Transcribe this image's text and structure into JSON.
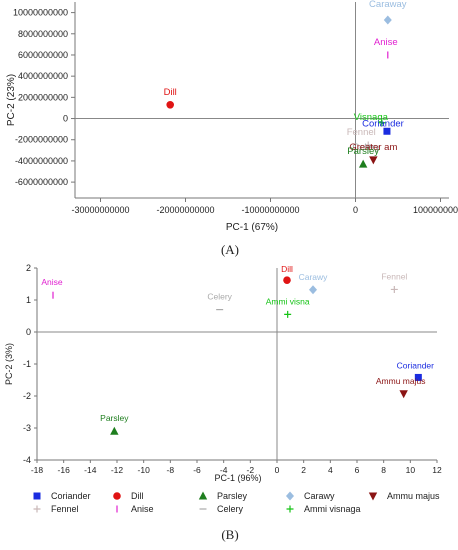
{
  "captions": {
    "a": "(A)",
    "b": "(B)"
  },
  "chart_data": [
    {
      "type": "scatter",
      "title": "",
      "xlabel": "PC-1 (67%)",
      "ylabel": "PC-2 (23%)",
      "xlim": [
        -33000000000,
        11000000000
      ],
      "ylim": [
        -7500000000,
        11000000000
      ],
      "x_ticks": [
        -30000000000,
        -20000000000,
        -10000000000,
        0,
        10000000000
      ],
      "x_tick_labels": [
        "-30000000000",
        "-20000000000",
        "-10000000000",
        "0",
        "10000000000"
      ],
      "y_ticks": [
        10000000000,
        8000000000,
        6000000000,
        4000000000,
        2000000000,
        0,
        -2000000000,
        -4000000000,
        -6000000000
      ],
      "y_tick_labels": [
        "10000000000",
        "8000000000",
        "6000000000",
        "4000000000",
        "2000000000",
        "0",
        "-2000000000",
        "-4000000000",
        "-6000000000"
      ],
      "zero_lines": true,
      "grid": false,
      "legend": "none",
      "points": [
        {
          "label": "Caraway",
          "x": 3800000000,
          "y": 9300000000,
          "marker": "diamond",
          "color": "#9bbde0",
          "label_dx": 0,
          "label_dy": -13
        },
        {
          "label": "Anise",
          "x": 3800000000,
          "y": 6000000000,
          "marker": "vline",
          "color": "#e11fd0",
          "label_dx": -2,
          "label_dy": -10
        },
        {
          "label": "Dill",
          "x": -21800000000,
          "y": 1300000000,
          "marker": "circle",
          "color": "#e01414",
          "label_dx": 0,
          "label_dy": -10
        },
        {
          "label": "Visnaga",
          "x": 3100000000,
          "y": -400000000,
          "marker": "plus",
          "color": "#15c315",
          "label_dx": -11,
          "label_dy": -3
        },
        {
          "label": "Coriander",
          "x": 3700000000,
          "y": -1200000000,
          "marker": "square",
          "color": "#1a2ce0",
          "label_dx": -4,
          "label_dy": -5
        },
        {
          "label": "Fennel",
          "x": 1500000000,
          "y": -2500000000,
          "marker": "plus",
          "color": "#c9b8b8",
          "label_dx": -7,
          "label_dy": -10
        },
        {
          "label": "Celery",
          "x": 1600000000,
          "y": -2700000000,
          "marker": "dash",
          "color": "#aaaaaa",
          "label_dx": -3,
          "label_dy": 3
        },
        {
          "label": "Greater am",
          "x": 2100000000,
          "y": -3900000000,
          "marker": "triangle-down",
          "color": "#8b1414",
          "label_dx": 0,
          "label_dy": -10
        },
        {
          "label": "Parsley",
          "x": 900000000,
          "y": -4300000000,
          "marker": "triangle",
          "color": "#1e7e1e",
          "label_dx": 0,
          "label_dy": -10
        }
      ]
    },
    {
      "type": "scatter",
      "title": "",
      "xlabel": "PC-1 (96%)",
      "ylabel": "PC-2 (3%)",
      "xlim": [
        -18,
        12
      ],
      "ylim": [
        -4,
        2
      ],
      "x_ticks": [
        -18,
        -16,
        -14,
        -12,
        -10,
        -8,
        -6,
        -4,
        -2,
        0,
        2,
        4,
        6,
        8,
        10,
        12
      ],
      "y_ticks": [
        2,
        1,
        0,
        -1,
        -2,
        -3,
        -4
      ],
      "zero_lines": true,
      "grid": false,
      "legend": "bottom",
      "points": [
        {
          "label": "Anise",
          "x": -16.8,
          "y": 1.15,
          "marker": "vline",
          "color": "#e11fd0",
          "label_dx": -1,
          "label_dy": -10
        },
        {
          "label": "Dill",
          "x": 0.75,
          "y": 1.62,
          "marker": "circle",
          "color": "#e01414",
          "label_dx": 0,
          "label_dy": -8
        },
        {
          "label": "Carawy",
          "x": 2.7,
          "y": 1.32,
          "marker": "diamond",
          "color": "#9bbde0",
          "label_dx": 0,
          "label_dy": -10
        },
        {
          "label": "Fennel",
          "x": 8.8,
          "y": 1.33,
          "marker": "plus",
          "color": "#c9b8b8",
          "label_dx": 0,
          "label_dy": -10
        },
        {
          "label": "Celery",
          "x": -4.3,
          "y": 0.7,
          "marker": "dash",
          "color": "#aaaaaa",
          "label_dx": 0,
          "label_dy": -10
        },
        {
          "label": "Ammi visna",
          "x": 0.8,
          "y": 0.55,
          "marker": "plus",
          "color": "#15c315",
          "label_dx": 0,
          "label_dy": -10
        },
        {
          "label": "Coriander",
          "x": 10.6,
          "y": -1.42,
          "marker": "square",
          "color": "#1a2ce0",
          "label_dx": -3,
          "label_dy": -9
        },
        {
          "label": "Ammu majus",
          "x": 9.5,
          "y": -1.93,
          "marker": "triangle-down",
          "color": "#8b1414",
          "label_dx": -3,
          "label_dy": -10
        },
        {
          "label": "Parsley",
          "x": -12.2,
          "y": -3.1,
          "marker": "triangle",
          "color": "#1e7e1e",
          "label_dx": 0,
          "label_dy": -10
        }
      ],
      "legend_entries": [
        {
          "label": "Coriander",
          "marker": "square",
          "color": "#1a2ce0"
        },
        {
          "label": "Dill",
          "marker": "circle",
          "color": "#e01414"
        },
        {
          "label": "Parsley",
          "marker": "triangle",
          "color": "#1e7e1e"
        },
        {
          "label": "Carawy",
          "marker": "diamond",
          "color": "#9bbde0"
        },
        {
          "label": "Ammu majus",
          "marker": "triangle-down",
          "color": "#8b1414"
        },
        {
          "label": "Fennel",
          "marker": "plus",
          "color": "#c9b8b8"
        },
        {
          "label": "Anise",
          "marker": "vline",
          "color": "#e11fd0"
        },
        {
          "label": "Celery",
          "marker": "dash",
          "color": "#aaaaaa"
        },
        {
          "label": "Ammi visnaga",
          "marker": "plus",
          "color": "#15c315"
        }
      ]
    }
  ]
}
